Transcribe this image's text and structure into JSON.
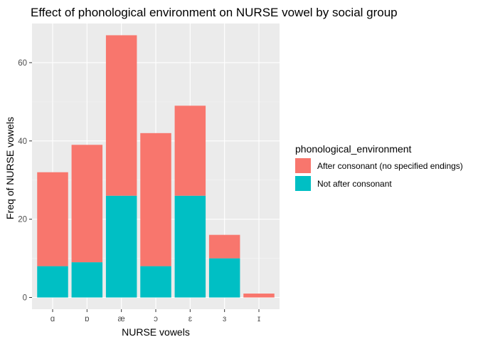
{
  "chart_data": {
    "type": "bar",
    "stacked": true,
    "title": "Effect of phonological environment on NURSE vowel by social group",
    "xlabel": "NURSE vowels",
    "ylabel": "Freq of NURSE vowels",
    "categories": [
      "ɑ",
      "ɒ",
      "æ",
      "ɔ",
      "ɛ",
      "ɜ",
      "ɪ"
    ],
    "ylim": [
      -3,
      70
    ],
    "yticks": [
      0,
      20,
      40,
      60
    ],
    "grid": true,
    "legend": {
      "title": "phonological_environment",
      "position": "right"
    },
    "series": [
      {
        "name": "Not after consonant",
        "color": "#00BFC4",
        "values": [
          8,
          9,
          26,
          8,
          26,
          10,
          0
        ]
      },
      {
        "name": "After consonant (no specified endings)",
        "color": "#F8766D",
        "values": [
          24,
          30,
          41,
          34,
          23,
          6,
          1
        ]
      }
    ]
  },
  "colors": {
    "panel_background": "#EBEBEB",
    "grid_major": "#FFFFFF",
    "grid_minor": "#F5F5F5"
  }
}
